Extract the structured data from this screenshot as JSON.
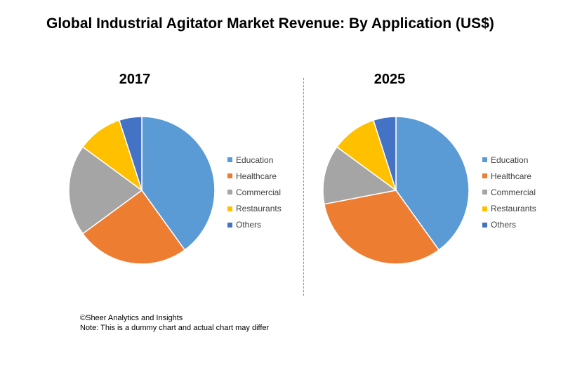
{
  "title": "Global Industrial Agitator Market Revenue: By Application (US$)",
  "colors": {
    "Education": "#5b9bd5",
    "Healthcare": "#ed7d31",
    "Commercial": "#a5a5a5",
    "Restaurants": "#ffc000",
    "Others": "#4472c4"
  },
  "chart_data": [
    {
      "type": "pie",
      "title": "2017",
      "categories": [
        "Education",
        "Healthcare",
        "Commercial",
        "Restaurants",
        "Others"
      ],
      "values": [
        40,
        25,
        20,
        10,
        5
      ],
      "legend": "right"
    },
    {
      "type": "pie",
      "title": "2025",
      "categories": [
        "Education",
        "Healthcare",
        "Commercial",
        "Restaurants",
        "Others"
      ],
      "values": [
        40,
        32,
        13,
        10,
        5
      ],
      "legend": "right"
    }
  ],
  "footnote": {
    "copyright": "©Sheer Analytics and Insights",
    "note": "Note: This is a dummy chart and actual chart may differ"
  }
}
